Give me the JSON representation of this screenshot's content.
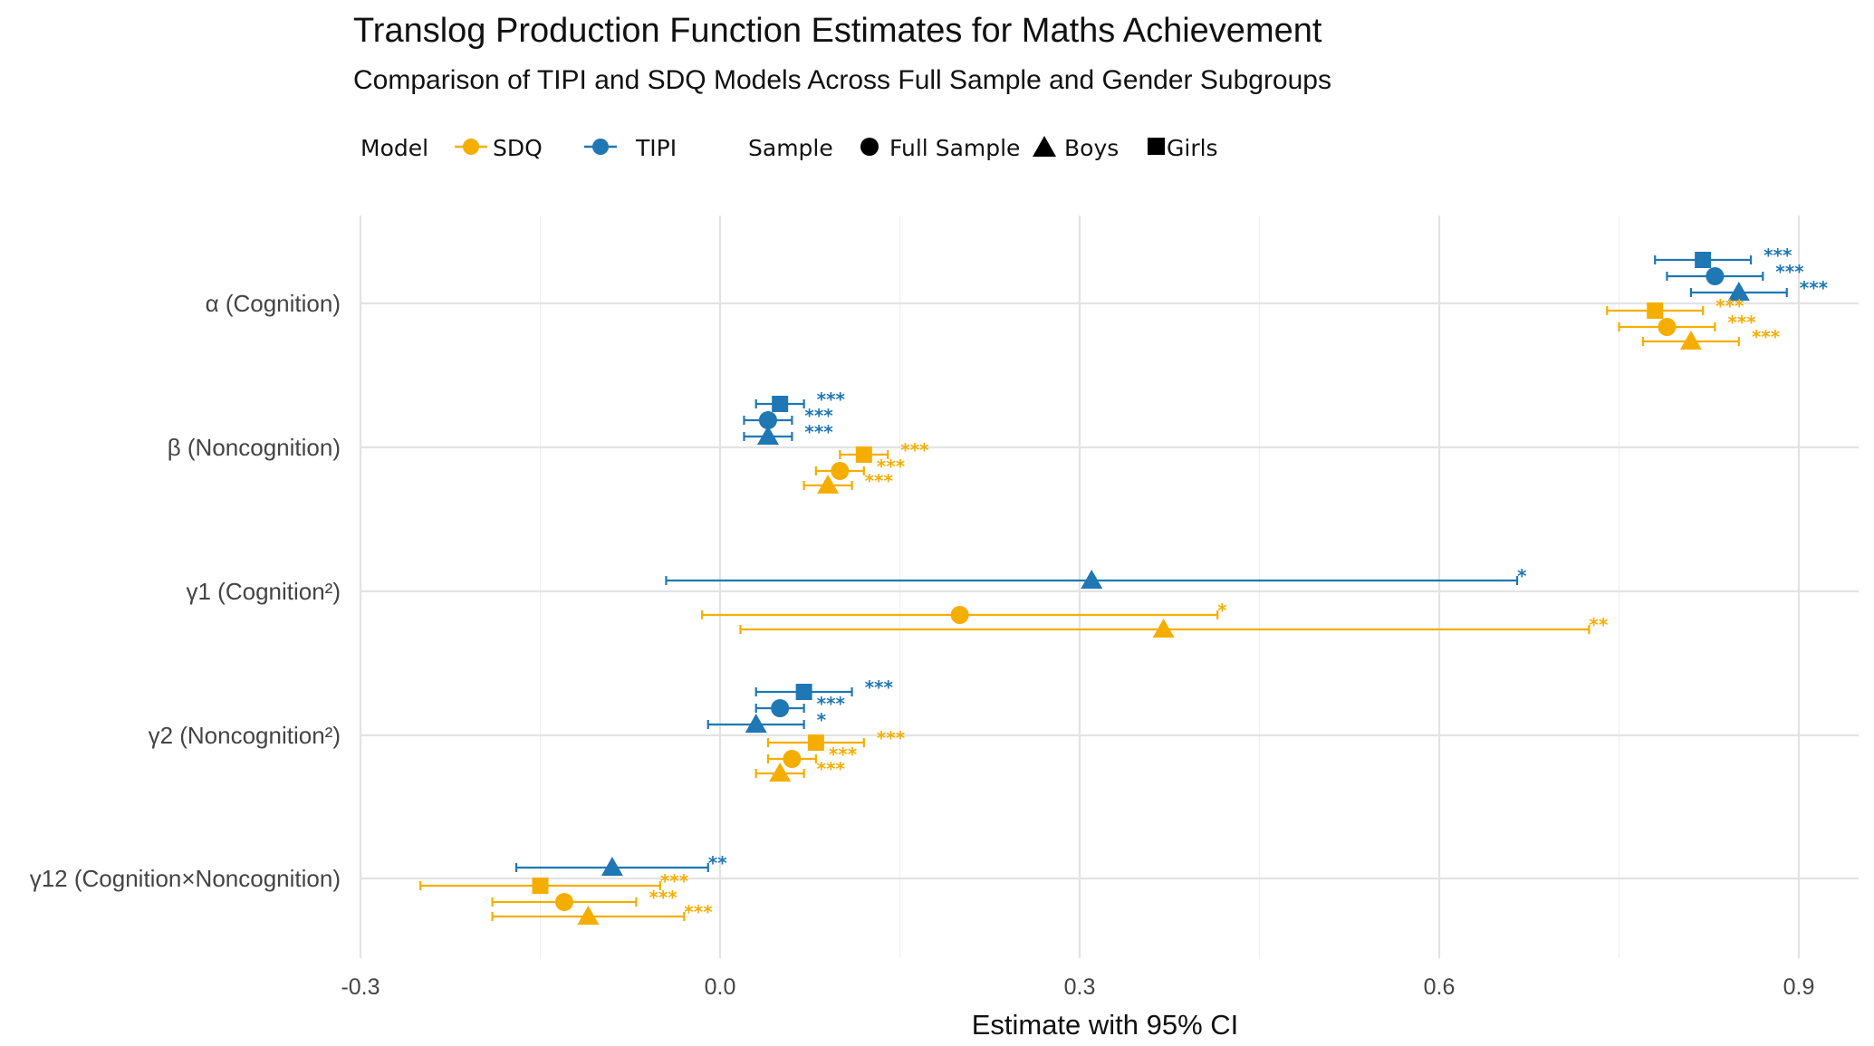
{
  "chart_data": {
    "type": "forest",
    "title": "Translog Production Function Estimates for Maths Achievement",
    "subtitle": "Comparison of TIPI and SDQ Models Across Full Sample and Gender Subgroups",
    "xlabel": "Estimate with 95% CI",
    "ylabel": "",
    "xlim": [
      -0.3,
      0.9
    ],
    "xticks": [
      "-0.3",
      "0.0",
      "0.3",
      "0.6",
      "0.9"
    ],
    "grid": true,
    "legend_position": "top",
    "legend": {
      "model_title": "Model",
      "models": [
        {
          "name": "SDQ",
          "color": "#F5AE00"
        },
        {
          "name": "TIPI",
          "color": "#1F77B4"
        }
      ],
      "sample_title": "Sample",
      "samples": [
        {
          "name": "Full Sample",
          "shape": "circle"
        },
        {
          "name": "Boys",
          "shape": "triangle"
        },
        {
          "name": "Girls",
          "shape": "square"
        }
      ]
    },
    "categories": [
      "α (Cognition)",
      "β (Noncognition)",
      "γ1 (Cognition²)",
      "γ2 (Noncognition²)",
      "γ12 (Cognition×Noncognition)"
    ],
    "points": [
      {
        "term": 0,
        "model": "TIPI",
        "sample": "Girls",
        "estimate": 0.82,
        "low": 0.78,
        "high": 0.86,
        "sig": "***"
      },
      {
        "term": 0,
        "model": "TIPI",
        "sample": "Full Sample",
        "estimate": 0.83,
        "low": 0.79,
        "high": 0.87,
        "sig": "***"
      },
      {
        "term": 0,
        "model": "TIPI",
        "sample": "Boys",
        "estimate": 0.85,
        "low": 0.81,
        "high": 0.89,
        "sig": "***"
      },
      {
        "term": 0,
        "model": "SDQ",
        "sample": "Girls",
        "estimate": 0.78,
        "low": 0.74,
        "high": 0.82,
        "sig": "***"
      },
      {
        "term": 0,
        "model": "SDQ",
        "sample": "Full Sample",
        "estimate": 0.79,
        "low": 0.75,
        "high": 0.83,
        "sig": "***"
      },
      {
        "term": 0,
        "model": "SDQ",
        "sample": "Boys",
        "estimate": 0.81,
        "low": 0.77,
        "high": 0.85,
        "sig": "***"
      },
      {
        "term": 1,
        "model": "TIPI",
        "sample": "Girls",
        "estimate": 0.05,
        "low": 0.03,
        "high": 0.07,
        "sig": "***"
      },
      {
        "term": 1,
        "model": "TIPI",
        "sample": "Full Sample",
        "estimate": 0.04,
        "low": 0.02,
        "high": 0.06,
        "sig": "***"
      },
      {
        "term": 1,
        "model": "TIPI",
        "sample": "Boys",
        "estimate": 0.04,
        "low": 0.02,
        "high": 0.06,
        "sig": "***"
      },
      {
        "term": 1,
        "model": "SDQ",
        "sample": "Girls",
        "estimate": 0.12,
        "low": 0.1,
        "high": 0.14,
        "sig": "***"
      },
      {
        "term": 1,
        "model": "SDQ",
        "sample": "Full Sample",
        "estimate": 0.1,
        "low": 0.08,
        "high": 0.12,
        "sig": "***"
      },
      {
        "term": 1,
        "model": "SDQ",
        "sample": "Boys",
        "estimate": 0.09,
        "low": 0.07,
        "high": 0.11,
        "sig": "***"
      },
      {
        "term": 2,
        "model": "TIPI",
        "sample": "Boys",
        "estimate": 0.31,
        "low": -0.045,
        "high": 0.665,
        "sig": "*"
      },
      {
        "term": 2,
        "model": "SDQ",
        "sample": "Full Sample",
        "estimate": 0.2,
        "low": -0.015,
        "high": 0.415,
        "sig": "*"
      },
      {
        "term": 2,
        "model": "SDQ",
        "sample": "Boys",
        "estimate": 0.37,
        "low": 0.017,
        "high": 0.725,
        "sig": "**"
      },
      {
        "term": 3,
        "model": "TIPI",
        "sample": "Girls",
        "estimate": 0.07,
        "low": 0.03,
        "high": 0.11,
        "sig": "***"
      },
      {
        "term": 3,
        "model": "TIPI",
        "sample": "Full Sample",
        "estimate": 0.05,
        "low": 0.03,
        "high": 0.07,
        "sig": "***"
      },
      {
        "term": 3,
        "model": "TIPI",
        "sample": "Boys",
        "estimate": 0.03,
        "low": -0.01,
        "high": 0.07,
        "sig": "*"
      },
      {
        "term": 3,
        "model": "SDQ",
        "sample": "Girls",
        "estimate": 0.08,
        "low": 0.04,
        "high": 0.12,
        "sig": "***"
      },
      {
        "term": 3,
        "model": "SDQ",
        "sample": "Full Sample",
        "estimate": 0.06,
        "low": 0.04,
        "high": 0.08,
        "sig": "***"
      },
      {
        "term": 3,
        "model": "SDQ",
        "sample": "Boys",
        "estimate": 0.05,
        "low": 0.03,
        "high": 0.07,
        "sig": "***"
      },
      {
        "term": 4,
        "model": "TIPI",
        "sample": "Boys",
        "estimate": -0.09,
        "low": -0.17,
        "high": -0.01,
        "sig": "**"
      },
      {
        "term": 4,
        "model": "SDQ",
        "sample": "Girls",
        "estimate": -0.15,
        "low": -0.25,
        "high": -0.05,
        "sig": "***"
      },
      {
        "term": 4,
        "model": "SDQ",
        "sample": "Full Sample",
        "estimate": -0.13,
        "low": -0.19,
        "high": -0.07,
        "sig": "***"
      },
      {
        "term": 4,
        "model": "SDQ",
        "sample": "Boys",
        "estimate": -0.11,
        "low": -0.19,
        "high": -0.03,
        "sig": "***"
      }
    ]
  }
}
